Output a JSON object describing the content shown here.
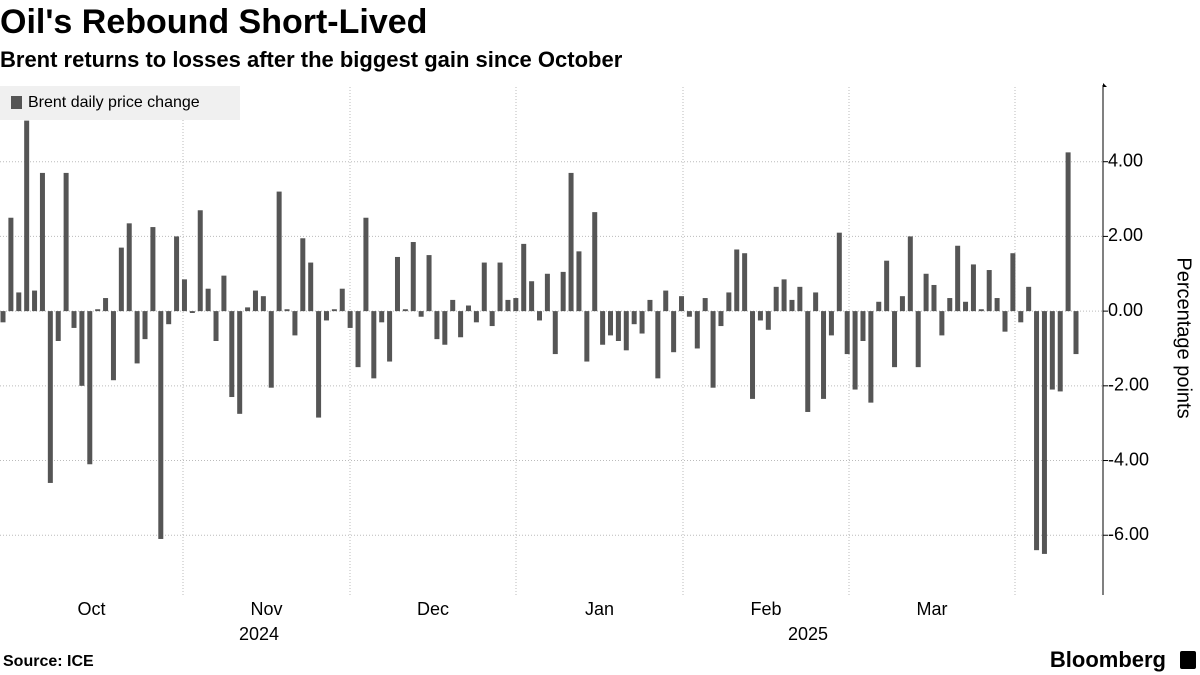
{
  "chart_data": {
    "type": "bar",
    "title": "Oil's Rebound Short-Lived",
    "subtitle": "Brent returns to losses after the biggest gain since October",
    "y_label": "Percentage points",
    "source": "Source: ICE",
    "brand": "Bloomberg",
    "months": [
      "Oct",
      "Nov",
      "Dec",
      "Jan",
      "Feb",
      "Mar"
    ],
    "years": [
      "2024",
      "2025"
    ],
    "series": [
      {
        "name": "Brent daily price change",
        "color": "#555555",
        "values": [
          -0.3,
          2.5,
          0.5,
          5.1,
          0.55,
          3.7,
          -4.6,
          -0.8,
          3.7,
          -0.45,
          -2.0,
          -4.1,
          0.05,
          0.35,
          -1.85,
          1.7,
          2.35,
          -1.4,
          -0.75,
          2.25,
          -6.1,
          -0.35,
          2.0,
          0.85,
          -0.05,
          2.7,
          0.6,
          -0.8,
          0.95,
          -2.3,
          -2.75,
          0.1,
          0.55,
          0.4,
          -2.05,
          3.2,
          0.05,
          -0.65,
          1.95,
          1.3,
          -2.85,
          -0.25,
          0.05,
          0.6,
          -0.45,
          -1.5,
          2.5,
          -1.8,
          -0.3,
          -1.35,
          1.45,
          0.05,
          1.85,
          -0.15,
          1.5,
          -0.75,
          -0.9,
          0.3,
          -0.7,
          0.15,
          -0.3,
          1.3,
          -0.4,
          1.3,
          0.3,
          0.35,
          1.8,
          0.8,
          -0.25,
          1.0,
          -1.15,
          1.05,
          3.7,
          1.6,
          -1.35,
          2.65,
          -0.9,
          -0.65,
          -0.8,
          -1.05,
          -0.35,
          -0.6,
          0.3,
          -1.8,
          0.55,
          -1.1,
          0.4,
          -0.15,
          -1.0,
          0.35,
          -2.05,
          -0.4,
          0.5,
          1.65,
          1.55,
          -2.35,
          -0.25,
          -0.5,
          0.65,
          0.85,
          0.3,
          0.65,
          -2.7,
          0.5,
          -2.35,
          -0.65,
          2.1,
          -1.15,
          -2.1,
          -0.8,
          -2.45,
          0.25,
          1.35,
          -1.5,
          0.4,
          2.0,
          -1.5,
          1.0,
          0.7,
          -0.65,
          0.35,
          1.75,
          0.25,
          1.25,
          0.05,
          1.1,
          0.35,
          -0.55,
          1.55,
          -0.3,
          0.65,
          -6.4,
          -6.5,
          -2.1,
          -2.15,
          4.25,
          -1.15
        ]
      }
    ],
    "ylim": [
      -7.6,
      6
    ],
    "yticks": [
      {
        "value": 4,
        "label": "4.00"
      },
      {
        "value": 2,
        "label": "2.00"
      },
      {
        "value": 0,
        "label": "0.00"
      },
      {
        "value": -2,
        "label": "-2.00"
      },
      {
        "value": -4,
        "label": "-4.00"
      },
      {
        "value": -6,
        "label": "-6.00"
      }
    ],
    "grid": true,
    "legend": "top-left"
  }
}
